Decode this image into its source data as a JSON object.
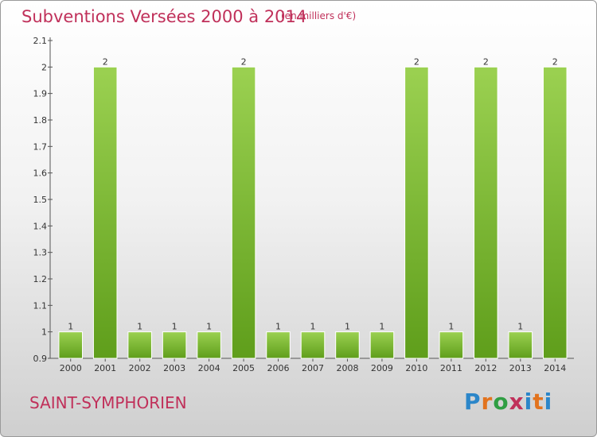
{
  "title": "Subventions Versées 2000 à 2014",
  "subtitle": "(en milliers d'€)",
  "commune": "SAINT-SYMPHORIEN",
  "logo": {
    "text": "Proxiti",
    "letters": [
      "P",
      "r",
      "o",
      "x",
      "i",
      "t",
      "i"
    ]
  },
  "colors": {
    "bar_light": "#9bd151",
    "bar_dark": "#5f9e1b",
    "title": "#c0305a"
  },
  "chart_data": {
    "type": "bar",
    "title": "Subventions Versées 2000 à 2014",
    "subtitle": "(en milliers d'€)",
    "categories": [
      "2000",
      "2001",
      "2002",
      "2003",
      "2004",
      "2005",
      "2006",
      "2007",
      "2008",
      "2009",
      "2010",
      "2011",
      "2012",
      "2013",
      "2014"
    ],
    "values": [
      1,
      2,
      1,
      1,
      1,
      2,
      1,
      1,
      1,
      1,
      2,
      1,
      2,
      1,
      2
    ],
    "data_labels": [
      "1",
      "2",
      "1",
      "1",
      "1",
      "2",
      "1",
      "1",
      "1",
      "1",
      "2",
      "1",
      "2",
      "1",
      "2"
    ],
    "ylim": [
      0.9,
      2.1
    ],
    "yticks": [
      0.9,
      1,
      1.1,
      1.2,
      1.3,
      1.4,
      1.5,
      1.6,
      1.7,
      1.8,
      1.9,
      2,
      2.1
    ],
    "ytick_labels": [
      "0.9",
      "1",
      "1.1",
      "1.2",
      "1.3",
      "1.4",
      "1.5",
      "1.6",
      "1.7",
      "1.8",
      "1.9",
      "2",
      "2.1"
    ],
    "grid": false,
    "legend": "none"
  }
}
